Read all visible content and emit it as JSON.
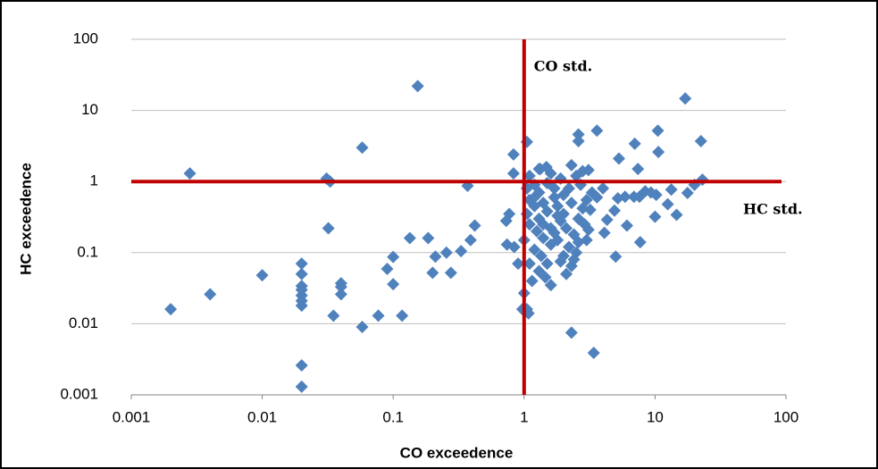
{
  "chart_data": {
    "type": "scatter",
    "x_label": "CO exceedence",
    "y_label": "HC exceedence",
    "log_x": true,
    "log_y": true,
    "grid": true,
    "color": "#4f81bd",
    "xlim": [
      0.001,
      100
    ],
    "xticks": [
      0.001,
      0.01,
      0.1,
      1,
      10,
      100
    ],
    "ylim": [
      0.001,
      100
    ],
    "yticks": [
      0.001,
      0.01,
      0.1,
      1,
      10,
      100
    ],
    "reference_lines": [
      {
        "axis": "x",
        "value": 1,
        "label": "CO std.",
        "color": "#c00000"
      },
      {
        "axis": "y",
        "value": 1,
        "label": "HC std.",
        "color": "#c00000"
      }
    ],
    "x": [
      0.002,
      0.0028,
      0.004,
      0.01,
      0.02,
      0.02,
      0.02,
      0.02,
      0.02,
      0.02,
      0.02,
      0.02,
      0.02,
      0.031,
      0.033,
      0.032,
      0.04,
      0.04,
      0.04,
      0.035,
      0.058,
      0.058,
      0.077,
      0.09,
      0.1,
      0.1,
      0.117,
      0.134,
      0.154,
      0.185,
      0.2,
      0.21,
      0.255,
      0.276,
      0.33,
      0.37,
      0.39,
      0.42,
      0.73,
      0.74,
      0.77,
      0.83,
      0.83,
      0.84,
      0.9,
      0.97,
      1.05,
      1.05,
      1.08,
      1.33,
      1.48,
      2.3,
      3.4,
      2.6,
      2.6,
      3.6,
      3.1,
      2.3,
      5.3,
      7,
      7.4,
      10.5,
      10.6,
      17,
      22.4,
      23,
      20,
      17.7,
      5,
      6.1,
      7.7,
      5.2,
      6.9,
      9.3,
      10,
      12.5,
      14.6,
      13.3,
      4.9,
      4.3,
      4.1,
      3.1,
      7.6,
      8.4,
      5.9,
      10.2,
      1.1,
      1.2,
      1.3,
      1.1,
      1.2,
      1.4,
      1.5,
      1.3,
      1.1,
      1.25,
      1.4,
      1.6,
      1.2,
      1.35,
      1.5,
      1.3,
      1.45,
      1.6,
      1.15,
      1.0,
      1.7,
      1.8,
      2.0,
      1.9,
      2.1,
      1.7,
      1.8,
      2.2,
      2.0,
      1.9,
      2.3,
      2.5,
      2.4,
      2.6,
      2.8,
      3.0,
      2.2,
      1.9,
      1.6,
      2.5,
      2.7,
      3.3,
      3.6,
      4.0,
      3.2,
      2.9,
      2.6,
      2.1,
      1.05,
      1.05,
      1.0,
      1.1,
      1.5,
      1.7,
      2.3,
      2.0,
      1.4,
      1.6,
      1.2,
      1.8,
      3.0,
      2.4,
      1.3,
      2.8
    ],
    "values": [
      0.016,
      1.3,
      0.026,
      0.048,
      0.07,
      0.05,
      0.034,
      0.03,
      0.025,
      0.021,
      0.018,
      0.0026,
      0.0013,
      1.1,
      1.0,
      0.22,
      0.037,
      0.033,
      0.026,
      0.013,
      3.0,
      0.009,
      0.013,
      0.059,
      0.087,
      0.036,
      0.013,
      0.16,
      22,
      0.16,
      0.052,
      0.088,
      0.1,
      0.052,
      0.105,
      0.87,
      0.15,
      0.24,
      0.28,
      0.13,
      0.35,
      1.3,
      2.4,
      0.12,
      0.07,
      0.016,
      3.6,
      0.016,
      0.014,
      1.5,
      1.6,
      0.0075,
      0.0039,
      4.6,
      3.7,
      5.2,
      1.45,
      1.7,
      2.1,
      3.4,
      1.5,
      5.2,
      2.6,
      14.7,
      3.7,
      1.06,
      0.9,
      0.69,
      0.088,
      0.24,
      0.14,
      0.58,
      0.61,
      0.7,
      0.32,
      0.48,
      0.34,
      0.77,
      0.39,
      0.29,
      0.19,
      0.21,
      0.61,
      0.73,
      0.61,
      0.65,
      1.2,
      0.9,
      0.7,
      0.55,
      0.45,
      0.5,
      0.38,
      0.3,
      0.25,
      0.2,
      0.16,
      0.13,
      0.11,
      0.09,
      0.07,
      0.055,
      0.045,
      0.035,
      0.04,
      0.027,
      0.6,
      0.45,
      0.35,
      0.28,
      0.22,
      0.19,
      0.15,
      0.12,
      0.09,
      0.075,
      0.065,
      0.1,
      0.18,
      0.3,
      0.42,
      0.55,
      0.8,
      1.1,
      1.3,
      1.2,
      0.9,
      0.7,
      0.6,
      0.8,
      0.4,
      0.25,
      0.14,
      0.05,
      0.8,
      0.35,
      0.15,
      0.07,
      0.95,
      0.8,
      0.5,
      0.65,
      0.25,
      0.22,
      0.6,
      0.33,
      0.15,
      0.08,
      1.5,
      1.4
    ]
  }
}
